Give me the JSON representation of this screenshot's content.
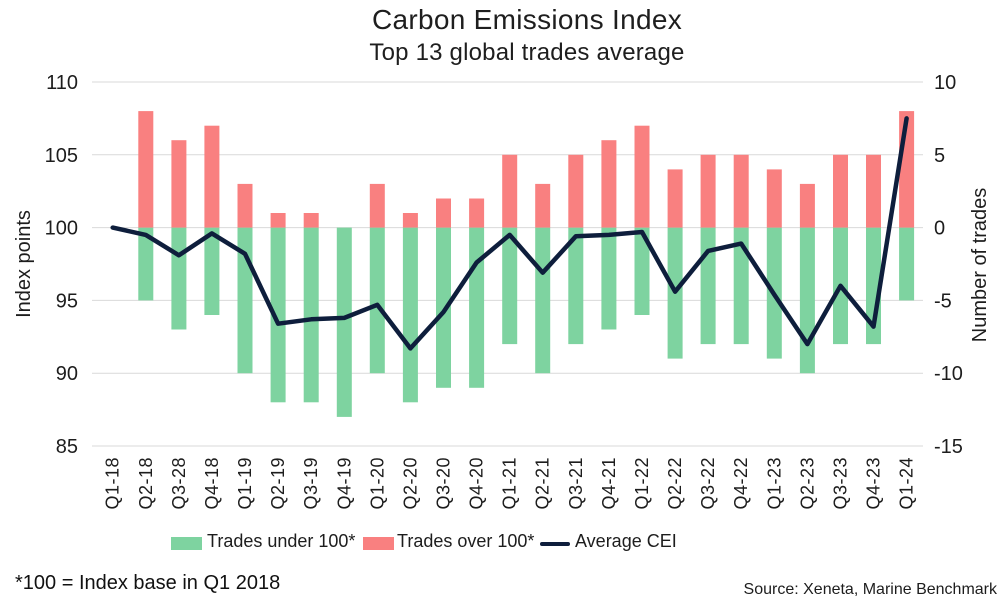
{
  "title": "Carbon Emissions Index",
  "subtitle": "Top 13 global trades average",
  "footnote": "*100 = Index base in Q1 2018",
  "source": "Source: Xeneta, Marine Benchmark",
  "legend": [
    {
      "label": "Trades under 100*",
      "color": "#7ed3a0",
      "type": "swatch"
    },
    {
      "label": "Trades over 100*",
      "color": "#f98080",
      "type": "swatch"
    },
    {
      "label": "Average CEI",
      "color": "#0e1e3c",
      "type": "line"
    }
  ],
  "chart_data": {
    "type": "bar",
    "subtype": "combo-bar-line",
    "title": "Carbon Emissions Index",
    "subtitle": "Top 13 global trades average",
    "grid_color": "#d9d9d9",
    "categories": [
      "Q1-18",
      "Q2-18",
      "Q3-28",
      "Q4-18",
      "Q1-19",
      "Q2-19",
      "Q3-19",
      "Q4-19",
      "Q1-20",
      "Q2-20",
      "Q3-20",
      "Q4-20",
      "Q1-21",
      "Q2-21",
      "Q3-21",
      "Q4-21",
      "Q1-22",
      "Q2-22",
      "Q3-22",
      "Q4-22",
      "Q1-23",
      "Q2-23",
      "Q3-23",
      "Q4-23",
      "Q1-24"
    ],
    "left_axis": {
      "label": "Index points",
      "min": 85,
      "max": 110,
      "ticks": [
        110,
        105,
        100,
        95,
        90,
        85
      ]
    },
    "right_axis": {
      "label": "Number of trades",
      "min": -15,
      "max": 10,
      "ticks": [
        10,
        5,
        0,
        -5,
        -10,
        -15
      ]
    },
    "series": [
      {
        "name": "Trades under 100*",
        "type": "bar",
        "yaxis": "right",
        "color": "#7ed3a0",
        "values": [
          0,
          -5,
          -7,
          -6,
          -10,
          -12,
          -12,
          -13,
          -10,
          -12,
          -11,
          -11,
          -8,
          -10,
          -8,
          -7,
          -6,
          -9,
          -8,
          -8,
          -9,
          -10,
          -8,
          -8,
          -5
        ]
      },
      {
        "name": "Trades over 100*",
        "type": "bar",
        "yaxis": "right",
        "color": "#f98080",
        "values": [
          0,
          8,
          6,
          7,
          3,
          1,
          1,
          0,
          3,
          1,
          2,
          2,
          5,
          3,
          5,
          6,
          7,
          4,
          5,
          5,
          4,
          3,
          5,
          5,
          8
        ]
      },
      {
        "name": "Average CEI",
        "type": "line",
        "yaxis": "left",
        "color": "#0e1e3c",
        "values": [
          100.0,
          99.5,
          98.1,
          99.6,
          98.2,
          93.4,
          93.7,
          93.8,
          94.7,
          91.7,
          94.2,
          97.6,
          99.5,
          96.9,
          99.4,
          99.5,
          99.7,
          95.6,
          98.4,
          98.9,
          95.4,
          92.0,
          96.0,
          93.2,
          107.5
        ]
      }
    ],
    "legend_position": "bottom",
    "grid": true
  }
}
